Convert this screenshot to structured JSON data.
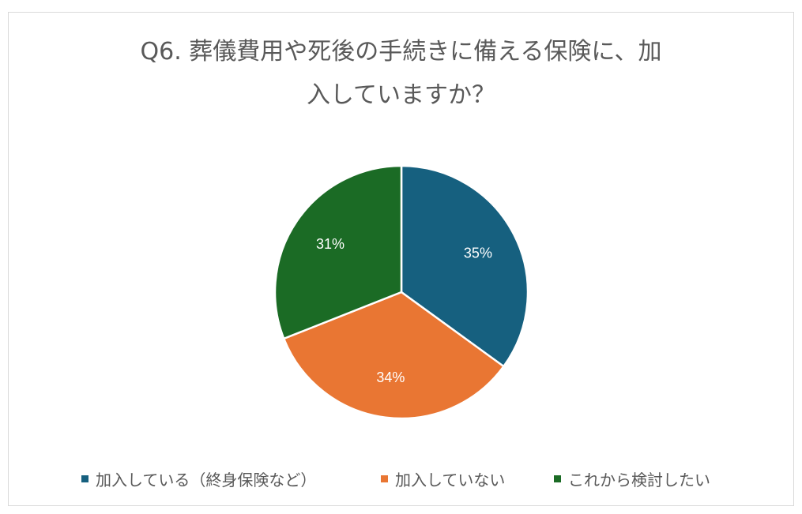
{
  "chart_data": {
    "type": "pie",
    "title_lines": [
      "Q6. 葬儀費用や死後の手続きに備える保険に、加",
      "入していますか？"
    ],
    "categories": [
      "加入している（終身保険など）",
      "加入していない",
      "これから検討したい"
    ],
    "values": [
      35,
      34,
      31
    ],
    "labels": [
      "35%",
      "34%",
      "31%"
    ],
    "colors": [
      "#16607f",
      "#e97633",
      "#1b6b25"
    ],
    "start_angle_deg": 0,
    "direction": "clockwise",
    "legend_position": "bottom",
    "label_color": "#ffffff"
  }
}
